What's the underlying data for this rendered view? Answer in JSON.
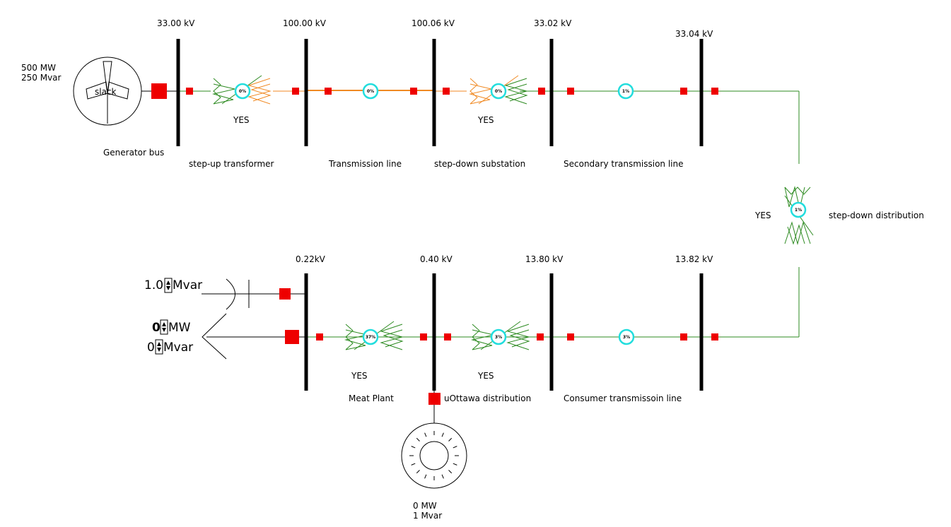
{
  "colors": {
    "energized_line": "#2e8b22",
    "loaded_line": "#f08a24",
    "breaker": "#ee0000",
    "bus": "#000000",
    "flow_gauge": "#22dddd"
  },
  "generator": {
    "mw": "500 MW",
    "mvar": "250 Mvar",
    "type": "slack",
    "icon": "wind-turbine-icon"
  },
  "buses": [
    {
      "id": "gen",
      "voltage": "33.00 kV",
      "label": "Generator bus"
    },
    {
      "id": "hv1",
      "voltage": "100.00 kV",
      "label": ""
    },
    {
      "id": "hv2",
      "voltage": "100.06 kV",
      "label": ""
    },
    {
      "id": "mv1",
      "voltage": "33.02 kV",
      "label": ""
    },
    {
      "id": "mv2",
      "voltage": "33.04 kV",
      "label": ""
    },
    {
      "id": "dist1",
      "voltage": "13.82 kV",
      "label": ""
    },
    {
      "id": "dist2",
      "voltage": "13.80 kV",
      "label": ""
    },
    {
      "id": "lv1",
      "voltage": "0.40 kV",
      "label": ""
    },
    {
      "id": "lv2",
      "voltage": "0.22kV",
      "label": ""
    }
  ],
  "branches": [
    {
      "id": "t-stepup",
      "name": "step-up transformer",
      "type": "transformer",
      "loading": "0%",
      "tap_label": "YES"
    },
    {
      "id": "l-trans",
      "name": "Transmission line",
      "type": "line",
      "loading": "0%"
    },
    {
      "id": "t-stepdown",
      "name": "step-down substation",
      "type": "transformer",
      "loading": "0%",
      "tap_label": "YES"
    },
    {
      "id": "l-secondary",
      "name": "Secondary transmission line",
      "type": "line",
      "loading": "1%"
    },
    {
      "id": "t-dist",
      "name": "step-down distribution",
      "type": "transformer",
      "loading": "1%",
      "tap_label": "YES"
    },
    {
      "id": "l-consumer",
      "name": "Consumer transmissoin line",
      "type": "line",
      "loading": "3%"
    },
    {
      "id": "t-uottawa",
      "name": "uOttawa distribution",
      "type": "transformer",
      "loading": "3%",
      "tap_label": "YES"
    },
    {
      "id": "t-meat",
      "name": "Meat Plant",
      "type": "transformer",
      "loading": "37%",
      "tap_label": "YES"
    }
  ],
  "capacitor": {
    "value": "1.0",
    "unit": "Mvar"
  },
  "load": {
    "mw_value": "0",
    "mw_unit": "MW",
    "mvar_value": "0",
    "mvar_unit": "Mvar"
  },
  "motor": {
    "mw": "0 MW",
    "mvar": "1 Mvar"
  }
}
